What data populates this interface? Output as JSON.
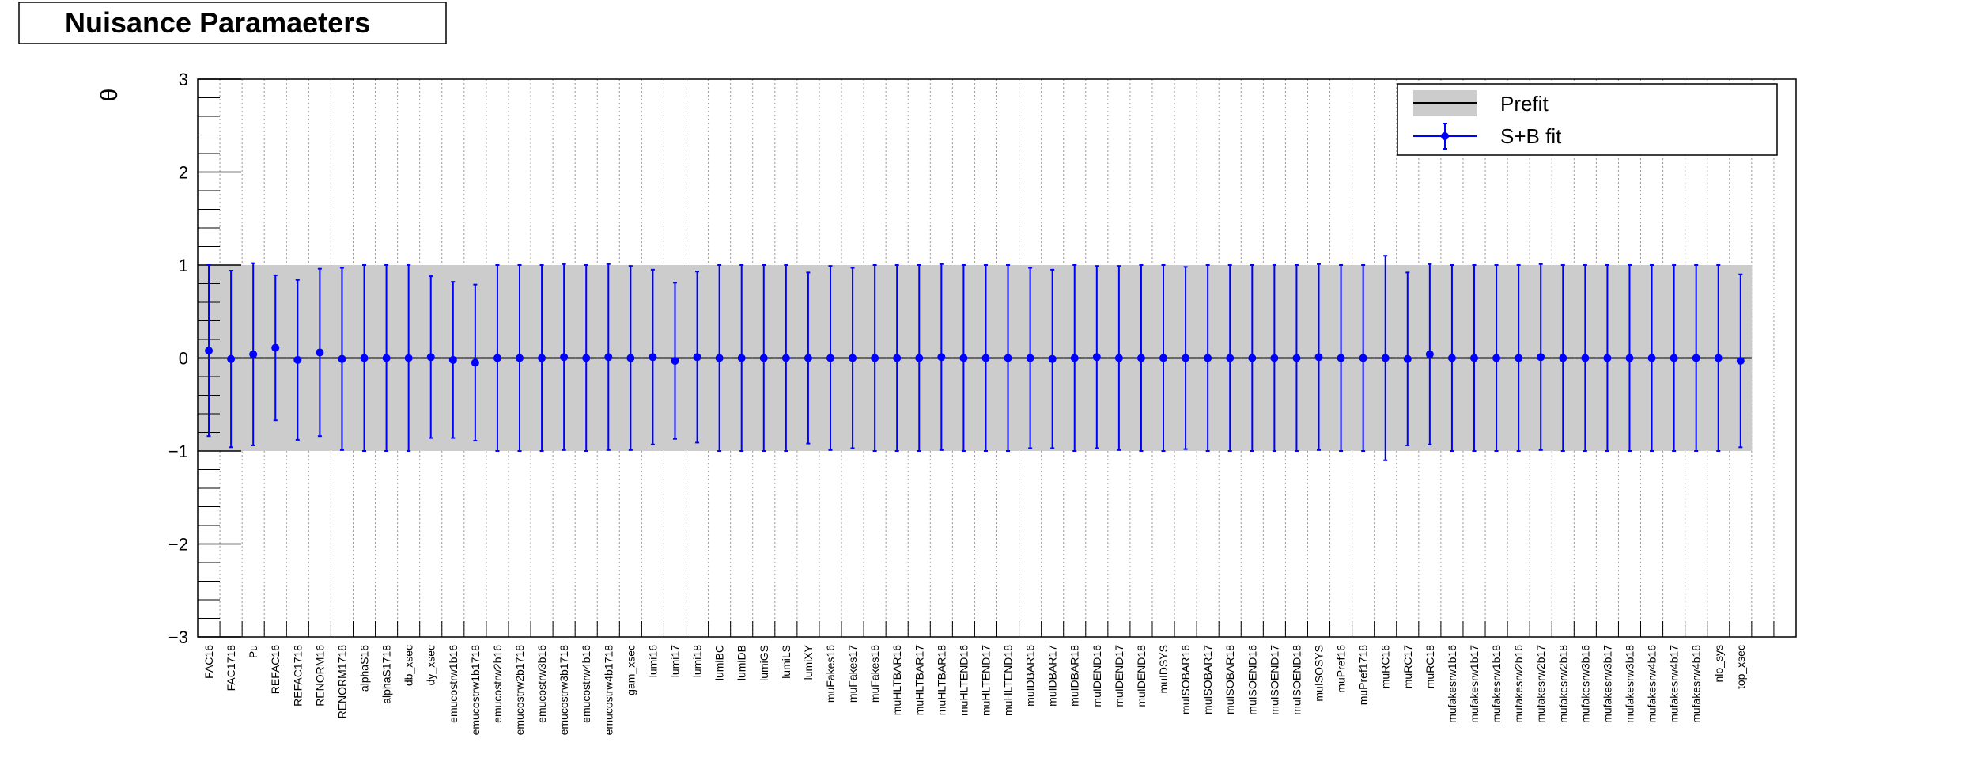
{
  "chart_data": {
    "type": "errorbar",
    "title": "Nuisance Paramaeters",
    "y_label": "θ",
    "categories": [
      "FAC16",
      "FAC1718",
      "Pu",
      "REFAC16",
      "REFAC1718",
      "RENORM16",
      "RENORM1718",
      "alphaS16",
      "alphaS1718",
      "db_xsec",
      "dy_xsec",
      "emucostrw1b16",
      "emucostrw1b1718",
      "emucostrw2b16",
      "emucostrw2b1718",
      "emucostrw3b16",
      "emucostrw3b1718",
      "emucostrw4b16",
      "emucostrw4b1718",
      "gam_xsec",
      "lumi16",
      "lumi17",
      "lumi18",
      "lumiBC",
      "lumiDB",
      "lumiGS",
      "lumiLS",
      "lumiXY",
      "muFakes16",
      "muFakes17",
      "muFakes18",
      "muHLTBAR16",
      "muHLTBAR17",
      "muHLTBAR18",
      "muHLTEND16",
      "muHLTEND17",
      "muHLTEND18",
      "muIDBAR16",
      "muIDBAR17",
      "muIDBAR18",
      "muIDEND16",
      "muIDEND17",
      "muIDEND18",
      "muIDSYS",
      "muISOBAR16",
      "muISOBAR17",
      "muISOBAR18",
      "muISOEND16",
      "muISOEND17",
      "muISOEND18",
      "muISOSYS",
      "muPref16",
      "muPref1718",
      "muRC16",
      "muRC17",
      "muRC18",
      "mufakesrw1b16",
      "mufakesrw1b17",
      "mufakesrw1b18",
      "mufakesrw2b16",
      "mufakesrw2b17",
      "mufakesrw2b18",
      "mufakesrw3b16",
      "mufakesrw3b17",
      "mufakesrw3b18",
      "mufakesrw4b16",
      "mufakesrw4b17",
      "mufakesrw4b18",
      "nlo_sys",
      "top_xsec",
      null,
      null
    ],
    "series": [
      {
        "name": "Prefit",
        "color": "#cccccc",
        "values": [
          0,
          0,
          0,
          0,
          0,
          0,
          0,
          0,
          0,
          0,
          0,
          0,
          0,
          0,
          0,
          0,
          0,
          0,
          0,
          0,
          0,
          0,
          0,
          0,
          0,
          0,
          0,
          0,
          0,
          0,
          0,
          0,
          0,
          0,
          0,
          0,
          0,
          0,
          0,
          0,
          0,
          0,
          0,
          0,
          0,
          0,
          0,
          0,
          0,
          0,
          0,
          0,
          0,
          0,
          0,
          0,
          0,
          0,
          0,
          0,
          0,
          0,
          0,
          0,
          0,
          0,
          0,
          0,
          0,
          0,
          null,
          null
        ],
        "errors": [
          1,
          1,
          1,
          1,
          1,
          1,
          1,
          1,
          1,
          1,
          1,
          1,
          1,
          1,
          1,
          1,
          1,
          1,
          1,
          1,
          1,
          1,
          1,
          1,
          1,
          1,
          1,
          1,
          1,
          1,
          1,
          1,
          1,
          1,
          1,
          1,
          1,
          1,
          1,
          1,
          1,
          1,
          1,
          1,
          1,
          1,
          1,
          1,
          1,
          1,
          1,
          1,
          1,
          1,
          1,
          1,
          1,
          1,
          1,
          1,
          1,
          1,
          1,
          1,
          1,
          1,
          1,
          1,
          1,
          1,
          null,
          null
        ]
      },
      {
        "name": "S+B fit",
        "color": "#0000ff",
        "values": [
          0.08,
          -0.01,
          0.04,
          0.11,
          -0.02,
          0.06,
          -0.01,
          0,
          0,
          0,
          0.01,
          -0.02,
          -0.05,
          0,
          0,
          0,
          0.01,
          0,
          0.01,
          0,
          0.01,
          -0.03,
          0.01,
          0,
          0,
          0,
          0,
          0,
          0,
          0,
          0,
          0,
          0,
          0.01,
          0,
          0,
          0,
          0,
          -0.01,
          0,
          0.01,
          0,
          0,
          0,
          0,
          0,
          0,
          0,
          0,
          0,
          0.01,
          0,
          0,
          0,
          -0.01,
          0.04,
          0,
          0,
          0,
          0,
          0.01,
          0,
          0,
          0,
          0,
          0,
          0,
          0,
          0,
          -0.03,
          null,
          null
        ],
        "errors": [
          0.92,
          0.95,
          0.98,
          0.78,
          0.86,
          0.9,
          0.98,
          1,
          1,
          1,
          0.87,
          0.84,
          0.84,
          1,
          1,
          1,
          1,
          1,
          1,
          0.99,
          0.94,
          0.84,
          0.92,
          1,
          1,
          1,
          1,
          0.92,
          0.99,
          0.97,
          1,
          1,
          1,
          1,
          1,
          1,
          1,
          0.97,
          0.96,
          1,
          0.98,
          0.99,
          1,
          1,
          0.98,
          1,
          1,
          1,
          1,
          1,
          1,
          1,
          1,
          1.1,
          0.93,
          0.97,
          1,
          1,
          1,
          1,
          1,
          1,
          1,
          1,
          1,
          1,
          1,
          1,
          1,
          0.93,
          null,
          null
        ]
      }
    ],
    "ylim": [
      -3,
      3
    ],
    "yticks": [
      {
        "value": -3,
        "label": "−3"
      },
      {
        "value": -2,
        "label": "−2"
      },
      {
        "value": -1,
        "label": "−1"
      },
      0,
      1,
      2,
      3
    ]
  }
}
